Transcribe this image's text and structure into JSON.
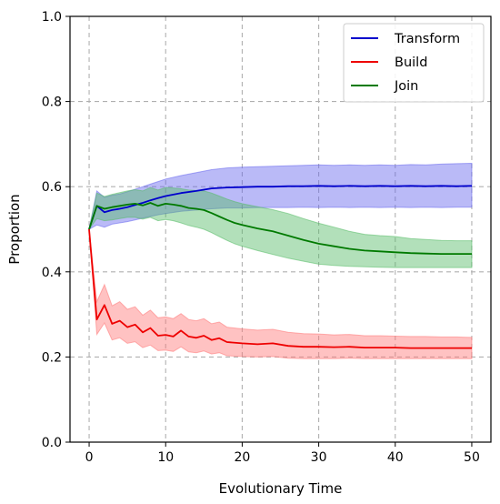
{
  "chart_data": {
    "type": "line",
    "title": "",
    "xlabel": "Evolutionary Time",
    "ylabel": "Proportion",
    "xlim": [
      -2.5,
      52.5
    ],
    "ylim": [
      0.0,
      1.0
    ],
    "xticks": [
      0,
      10,
      20,
      30,
      40,
      50
    ],
    "yticks": [
      0.0,
      0.2,
      0.4,
      0.6,
      0.8,
      1.0
    ],
    "xtick_labels": [
      "0",
      "10",
      "20",
      "30",
      "40",
      "50"
    ],
    "ytick_labels": [
      "0.0",
      "0.2",
      "0.4",
      "0.6",
      "0.8",
      "1.0"
    ],
    "grid": true,
    "legend_position": "top-right",
    "series": [
      {
        "name": "Transform",
        "color": "#0000cc",
        "band_color": "#6666ee",
        "x": [
          0,
          1,
          2,
          3,
          4,
          5,
          6,
          7,
          8,
          9,
          10,
          12,
          14,
          16,
          18,
          20,
          22,
          24,
          26,
          28,
          30,
          32,
          34,
          36,
          38,
          40,
          42,
          44,
          46,
          48,
          50
        ],
        "values": [
          0.5,
          0.555,
          0.54,
          0.545,
          0.548,
          0.552,
          0.557,
          0.562,
          0.568,
          0.573,
          0.578,
          0.585,
          0.59,
          0.596,
          0.598,
          0.599,
          0.6,
          0.6,
          0.601,
          0.601,
          0.602,
          0.601,
          0.602,
          0.601,
          0.602,
          0.601,
          0.602,
          0.601,
          0.602,
          0.601,
          0.602
        ],
        "lower": [
          0.5,
          0.51,
          0.505,
          0.512,
          0.515,
          0.518,
          0.522,
          0.526,
          0.53,
          0.534,
          0.537,
          0.542,
          0.545,
          0.548,
          0.55,
          0.55,
          0.551,
          0.551,
          0.551,
          0.552,
          0.551,
          0.552,
          0.551,
          0.552,
          0.551,
          0.552,
          0.551,
          0.552,
          0.551,
          0.552,
          0.552
        ],
        "upper": [
          0.5,
          0.59,
          0.575,
          0.58,
          0.583,
          0.588,
          0.594,
          0.6,
          0.606,
          0.612,
          0.618,
          0.626,
          0.633,
          0.64,
          0.644,
          0.646,
          0.647,
          0.648,
          0.649,
          0.65,
          0.651,
          0.65,
          0.651,
          0.65,
          0.651,
          0.65,
          0.652,
          0.651,
          0.653,
          0.654,
          0.655
        ]
      },
      {
        "name": "Build",
        "color": "#ee0000",
        "band_color": "#ff7777",
        "x": [
          0,
          1,
          2,
          3,
          4,
          5,
          6,
          7,
          8,
          9,
          10,
          11,
          12,
          13,
          14,
          15,
          16,
          17,
          18,
          20,
          22,
          24,
          26,
          28,
          30,
          32,
          34,
          36,
          38,
          40,
          42,
          44,
          46,
          48,
          50
        ],
        "values": [
          0.5,
          0.288,
          0.322,
          0.278,
          0.285,
          0.27,
          0.276,
          0.258,
          0.268,
          0.25,
          0.252,
          0.248,
          0.262,
          0.248,
          0.245,
          0.25,
          0.24,
          0.244,
          0.235,
          0.232,
          0.23,
          0.232,
          0.226,
          0.224,
          0.224,
          0.223,
          0.224,
          0.222,
          0.222,
          0.222,
          0.221,
          0.221,
          0.221,
          0.221,
          0.221
        ],
        "lower": [
          0.5,
          0.253,
          0.28,
          0.24,
          0.245,
          0.232,
          0.236,
          0.222,
          0.228,
          0.215,
          0.216,
          0.213,
          0.224,
          0.212,
          0.21,
          0.214,
          0.207,
          0.21,
          0.203,
          0.201,
          0.2,
          0.201,
          0.197,
          0.196,
          0.196,
          0.196,
          0.197,
          0.196,
          0.196,
          0.196,
          0.196,
          0.196,
          0.196,
          0.196,
          0.196
        ],
        "upper": [
          0.5,
          0.33,
          0.37,
          0.32,
          0.33,
          0.312,
          0.318,
          0.298,
          0.31,
          0.292,
          0.294,
          0.29,
          0.302,
          0.288,
          0.285,
          0.29,
          0.278,
          0.282,
          0.27,
          0.266,
          0.263,
          0.265,
          0.258,
          0.255,
          0.254,
          0.252,
          0.253,
          0.25,
          0.25,
          0.249,
          0.248,
          0.248,
          0.247,
          0.247,
          0.246
        ]
      },
      {
        "name": "Join",
        "color": "#007a00",
        "band_color": "#55bb66",
        "x": [
          0,
          1,
          2,
          3,
          4,
          5,
          6,
          7,
          8,
          9,
          10,
          11,
          12,
          13,
          14,
          15,
          16,
          17,
          18,
          19,
          20,
          22,
          24,
          26,
          28,
          30,
          32,
          34,
          36,
          38,
          40,
          42,
          44,
          46,
          48,
          50
        ],
        "values": [
          0.5,
          0.555,
          0.548,
          0.552,
          0.555,
          0.558,
          0.56,
          0.556,
          0.562,
          0.555,
          0.56,
          0.558,
          0.555,
          0.55,
          0.548,
          0.545,
          0.538,
          0.53,
          0.522,
          0.515,
          0.51,
          0.502,
          0.495,
          0.485,
          0.475,
          0.466,
          0.46,
          0.454,
          0.45,
          0.448,
          0.446,
          0.444,
          0.443,
          0.442,
          0.442,
          0.442
        ],
        "lower": [
          0.5,
          0.525,
          0.52,
          0.522,
          0.525,
          0.528,
          0.528,
          0.524,
          0.528,
          0.52,
          0.523,
          0.52,
          0.515,
          0.509,
          0.505,
          0.5,
          0.492,
          0.483,
          0.474,
          0.466,
          0.46,
          0.45,
          0.441,
          0.432,
          0.425,
          0.418,
          0.415,
          0.413,
          0.412,
          0.411,
          0.41,
          0.41,
          0.41,
          0.41,
          0.41,
          0.41
        ],
        "upper": [
          0.5,
          0.585,
          0.577,
          0.582,
          0.586,
          0.59,
          0.593,
          0.59,
          0.598,
          0.592,
          0.598,
          0.597,
          0.595,
          0.592,
          0.591,
          0.59,
          0.585,
          0.578,
          0.571,
          0.565,
          0.56,
          0.553,
          0.546,
          0.537,
          0.525,
          0.514,
          0.505,
          0.495,
          0.488,
          0.485,
          0.483,
          0.478,
          0.476,
          0.474,
          0.473,
          0.473
        ]
      }
    ]
  }
}
